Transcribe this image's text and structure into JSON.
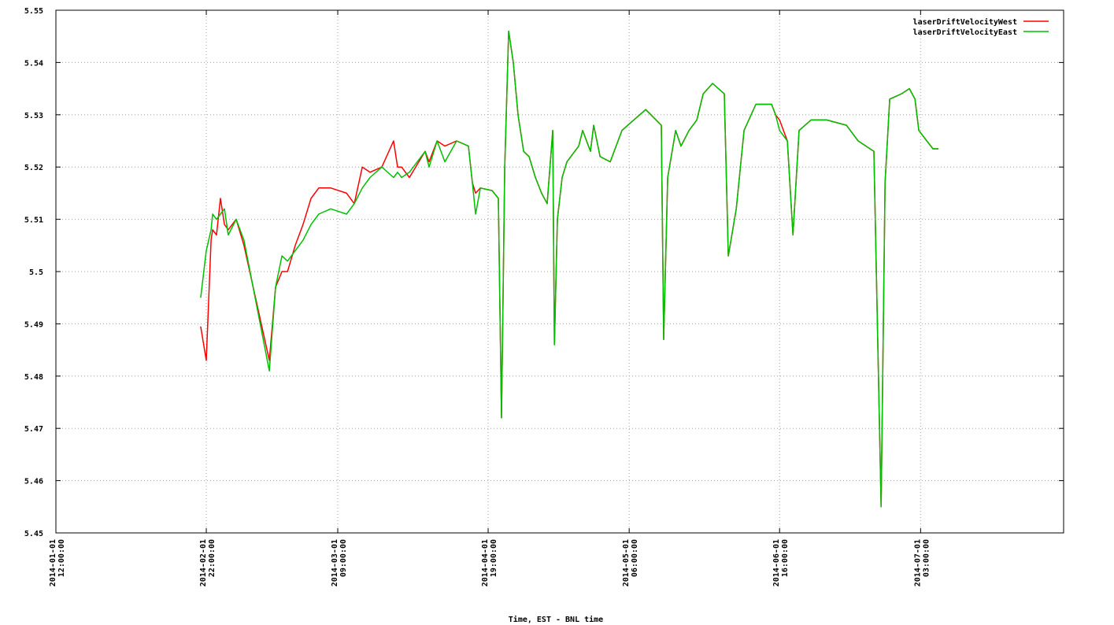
{
  "chart_data": {
    "type": "line",
    "x_label": "Time, EST - BNL time",
    "xlim": [
      "2014-01-01 12:00:00",
      "2014-07-31 00:00:00"
    ],
    "xticks": [
      {
        "value": "2014-01-01 12:00:00",
        "label": [
          "2014-01-01",
          "12:00:00"
        ]
      },
      {
        "value": "2014-02-01 22:00:00",
        "label": [
          "2014-02-01",
          "22:00:00"
        ]
      },
      {
        "value": "2014-03-01 09:00:00",
        "label": [
          "2014-03-01",
          "09:00:00"
        ]
      },
      {
        "value": "2014-04-01 19:00:00",
        "label": [
          "2014-04-01",
          "19:00:00"
        ]
      },
      {
        "value": "2014-05-01 06:00:00",
        "label": [
          "2014-05-01",
          "06:00:00"
        ]
      },
      {
        "value": "2014-06-01 16:00:00",
        "label": [
          "2014-06-01",
          "16:00:00"
        ]
      },
      {
        "value": "2014-07-01 03:00:00",
        "label": [
          "2014-07-01",
          "03:00:00"
        ]
      }
    ],
    "ylim": [
      5.45,
      5.55
    ],
    "yticks": [
      5.45,
      5.46,
      5.47,
      5.48,
      5.49,
      5.5,
      5.51,
      5.52,
      5.53,
      5.54,
      5.55
    ],
    "grid": true,
    "legend": "top-right",
    "x": [
      "2014-01-31 18:00:00",
      "2014-02-01 22:00:00",
      "2014-02-02 22:00:00",
      "2014-02-03 06:00:00",
      "2014-02-04 01:00:00",
      "2014-02-04 21:00:00",
      "2014-02-05 17:00:00",
      "2014-02-06 12:00:00",
      "2014-02-08 04:00:00",
      "2014-02-09 19:00:00",
      "2014-02-15 02:00:00",
      "2014-02-16 09:00:00",
      "2014-02-17 17:00:00",
      "2014-02-18 21:00:00",
      "2014-02-20 12:00:00",
      "2014-02-22 03:00:00",
      "2014-02-23 19:00:00",
      "2014-02-25 10:00:00",
      "2014-02-27 22:00:00",
      "2014-03-03 05:00:00",
      "2014-03-04 20:00:00",
      "2014-03-06 12:00:00",
      "2014-03-08 03:00:00",
      "2014-03-10 14:00:00",
      "2014-03-13 01:00:00",
      "2014-03-13 21:00:00",
      "2014-03-14 17:00:00",
      "2014-03-16 08:00:00",
      "2014-03-19 15:00:00",
      "2014-03-20 11:00:00",
      "2014-03-22 03:00:00",
      "2014-03-23 18:00:00",
      "2014-03-26 05:00:00",
      "2014-03-28 16:00:00",
      "2014-03-29 12:00:00",
      "2014-03-30 04:00:00",
      "2014-03-31 04:00:00",
      "2014-04-02 15:00:00",
      "2014-04-03 22:00:00",
      "2014-04-04 14:00:00",
      "2014-04-05 06:00:00",
      "2014-04-06 02:00:00",
      "2014-04-07 01:00:00",
      "2014-04-08 01:00:00",
      "2014-04-09 05:00:00",
      "2014-04-10 08:00:00",
      "2014-04-11 16:00:00",
      "2014-04-12 23:00:00",
      "2014-04-14 03:00:00",
      "2014-04-15 07:00:00",
      "2014-04-15 15:00:00",
      "2014-04-16 06:00:00",
      "2014-04-17 06:00:00",
      "2014-04-18 06:00:00",
      "2014-04-20 17:00:00",
      "2014-04-21 13:00:00",
      "2014-04-23 04:00:00",
      "2014-04-23 20:00:00",
      "2014-04-25 04:00:00",
      "2014-04-27 07:00:00",
      "2014-04-29 18:00:00",
      "2014-05-02 05:00:00",
      "2014-05-04 17:00:00",
      "2014-05-07 23:00:00",
      "2014-05-08 11:00:00",
      "2014-05-09 07:00:00",
      "2014-05-10 23:00:00",
      "2014-05-12 02:00:00",
      "2014-05-13 18:00:00",
      "2014-05-15 09:00:00",
      "2014-05-16 17:00:00",
      "2014-05-18 16:00:00",
      "2014-05-21 03:00:00",
      "2014-05-21 23:00:00",
      "2014-05-23 15:00:00",
      "2014-05-25 06:00:00",
      "2014-05-27 17:00:00",
      "2014-05-31 00:00:00",
      "2014-05-31 20:00:00",
      "2014-06-01 16:00:00",
      "2014-06-03 07:00:00",
      "2014-06-04 11:00:00",
      "2014-06-05 18:00:00",
      "2014-06-08 06:00:00",
      "2014-06-11 12:00:00",
      "2014-06-15 15:00:00",
      "2014-06-18 02:00:00",
      "2014-06-21 09:00:00",
      "2014-06-22 21:00:00",
      "2014-06-23 17:00:00",
      "2014-06-24 16:00:00",
      "2014-06-27 03:00:00",
      "2014-06-28 19:00:00",
      "2014-06-29 23:00:00",
      "2014-06-30 18:00:00",
      "2014-07-02 10:00:00",
      "2014-07-03 17:00:00",
      "2014-07-04 21:00:00"
    ],
    "series": [
      {
        "name": "laserDriftVelocityWest",
        "color": "#ff0000",
        "values": [
          5.4895,
          5.483,
          5.506,
          5.508,
          5.507,
          5.514,
          5.509,
          5.508,
          5.51,
          5.505,
          5.483,
          5.497,
          5.5,
          5.5,
          5.505,
          5.509,
          5.514,
          5.516,
          5.516,
          5.515,
          5.513,
          5.52,
          5.519,
          5.52,
          5.525,
          5.52,
          5.52,
          5.518,
          5.523,
          5.521,
          5.525,
          5.524,
          5.525,
          5.524,
          5.517,
          5.515,
          5.516,
          5.5155,
          5.514,
          5.472,
          5.52,
          5.546,
          5.54,
          5.53,
          5.523,
          5.522,
          5.518,
          5.515,
          5.513,
          5.527,
          5.486,
          5.51,
          5.518,
          5.521,
          5.524,
          5.527,
          5.523,
          5.528,
          5.522,
          5.521,
          5.527,
          5.529,
          5.531,
          5.528,
          5.487,
          5.518,
          5.527,
          5.524,
          5.527,
          5.529,
          5.534,
          5.536,
          5.534,
          5.503,
          5.512,
          5.527,
          5.532,
          5.532,
          5.53,
          5.529,
          5.525,
          5.507,
          5.527,
          5.529,
          5.529,
          5.528,
          5.525,
          5.523,
          5.455,
          5.517,
          5.533,
          5.534,
          5.535,
          5.533,
          5.527,
          5.525,
          5.5235,
          5.5235
        ]
      },
      {
        "name": "laserDriftVelocityEast",
        "color": "#00c000",
        "values": [
          5.495,
          5.504,
          5.508,
          5.511,
          5.51,
          5.511,
          5.512,
          5.507,
          5.51,
          5.506,
          5.481,
          5.497,
          5.503,
          5.502,
          5.504,
          5.506,
          5.509,
          5.511,
          5.512,
          5.511,
          5.513,
          5.516,
          5.518,
          5.52,
          5.518,
          5.519,
          5.518,
          5.519,
          5.523,
          5.52,
          5.525,
          5.521,
          5.525,
          5.524,
          5.517,
          5.511,
          5.516,
          5.5155,
          5.514,
          5.472,
          5.52,
          5.546,
          5.54,
          5.53,
          5.523,
          5.522,
          5.518,
          5.515,
          5.513,
          5.527,
          5.486,
          5.51,
          5.518,
          5.521,
          5.524,
          5.527,
          5.523,
          5.528,
          5.522,
          5.521,
          5.527,
          5.529,
          5.531,
          5.528,
          5.487,
          5.518,
          5.527,
          5.524,
          5.527,
          5.529,
          5.534,
          5.536,
          5.534,
          5.503,
          5.512,
          5.527,
          5.532,
          5.532,
          5.53,
          5.527,
          5.525,
          5.507,
          5.527,
          5.529,
          5.529,
          5.528,
          5.525,
          5.523,
          5.455,
          5.517,
          5.533,
          5.534,
          5.535,
          5.533,
          5.527,
          5.525,
          5.5235,
          5.5235
        ]
      }
    ]
  }
}
